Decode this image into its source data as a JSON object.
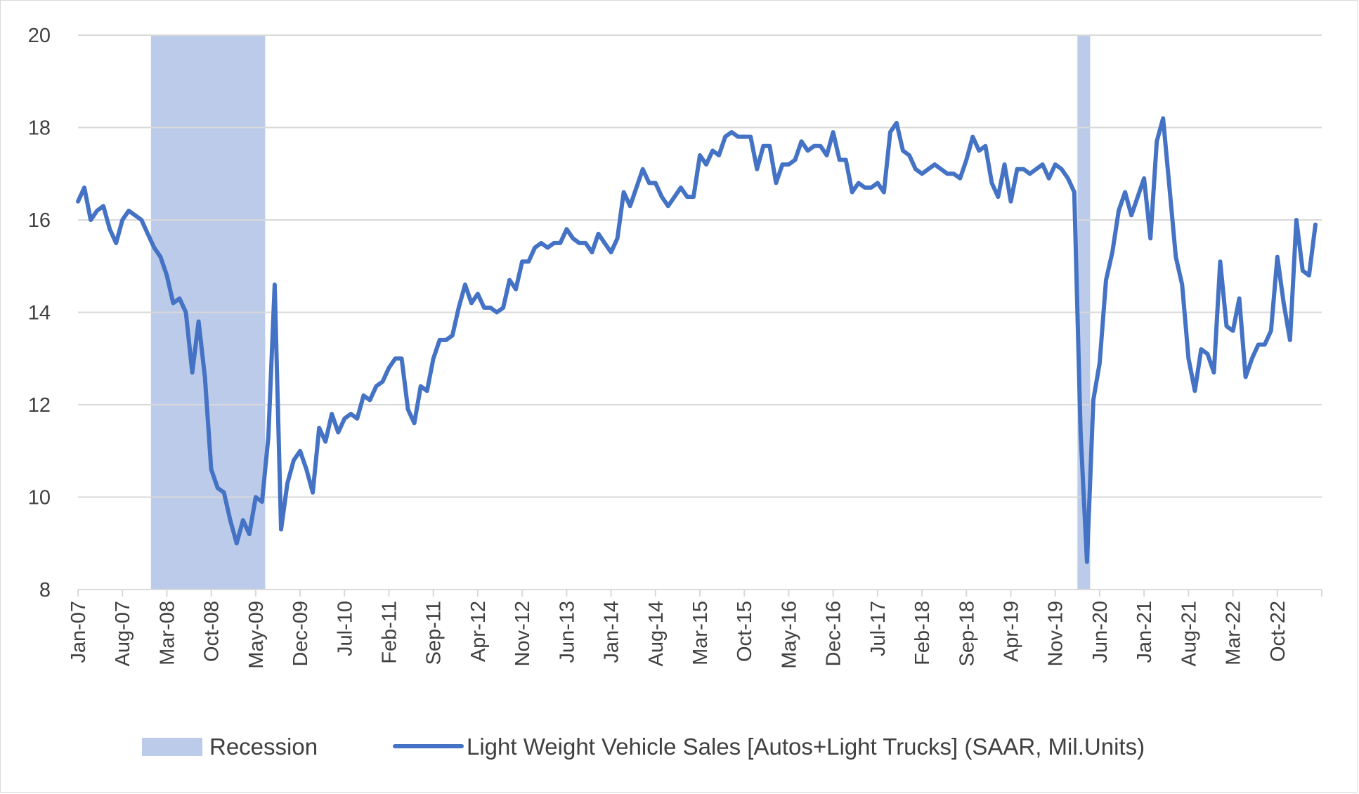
{
  "chart_data": {
    "type": "line",
    "title": "",
    "xlabel": "",
    "ylabel": "",
    "ylim": [
      8,
      20
    ],
    "yticks": [
      8,
      10,
      12,
      14,
      16,
      18,
      20
    ],
    "grid": true,
    "legend_position": "bottom",
    "x_start": "Jan-07",
    "x_tick_labels": [
      "Jan-07",
      "Aug-07",
      "Mar-08",
      "Oct-08",
      "May-09",
      "Dec-09",
      "Jul-10",
      "Feb-11",
      "Sep-11",
      "Apr-12",
      "Nov-12",
      "Jun-13",
      "Jan-14",
      "Aug-14",
      "Mar-15",
      "Oct-15",
      "May-16",
      "Dec-16",
      "Jul-17",
      "Feb-18",
      "Sep-18",
      "Apr-19",
      "Nov-19",
      "Jun-20",
      "Jan-21",
      "Aug-21",
      "Mar-22",
      "Oct-22"
    ],
    "x_tick_interval_months": 7,
    "recession": {
      "name": "Recession",
      "color": "#bccbe9",
      "periods": [
        {
          "start": "Dec-07",
          "end": "Jun-09"
        },
        {
          "start": "Feb-20",
          "end": "Apr-20"
        }
      ]
    },
    "series": [
      {
        "name": "Light Weight Vehicle Sales [Autos+Light Trucks] (SAAR, Mil.Units)",
        "color": "#4472c4",
        "values": [
          16.4,
          16.7,
          16.0,
          16.2,
          16.3,
          15.8,
          15.5,
          16.0,
          16.2,
          16.1,
          16.0,
          15.7,
          15.4,
          15.2,
          14.8,
          14.2,
          14.3,
          14.0,
          12.7,
          13.8,
          12.6,
          10.6,
          10.2,
          10.1,
          9.5,
          9.0,
          9.5,
          9.2,
          10.0,
          9.9,
          11.3,
          14.6,
          9.3,
          10.3,
          10.8,
          11.0,
          10.6,
          10.1,
          11.5,
          11.2,
          11.8,
          11.4,
          11.7,
          11.8,
          11.7,
          12.2,
          12.1,
          12.4,
          12.5,
          12.8,
          13.0,
          13.0,
          11.9,
          11.6,
          12.4,
          12.3,
          13.0,
          13.4,
          13.4,
          13.5,
          14.1,
          14.6,
          14.2,
          14.4,
          14.1,
          14.1,
          14.0,
          14.1,
          14.7,
          14.5,
          15.1,
          15.1,
          15.4,
          15.5,
          15.4,
          15.5,
          15.5,
          15.8,
          15.6,
          15.5,
          15.5,
          15.3,
          15.7,
          15.5,
          15.3,
          15.6,
          16.6,
          16.3,
          16.7,
          17.1,
          16.8,
          16.8,
          16.5,
          16.3,
          16.5,
          16.7,
          16.5,
          16.5,
          17.4,
          17.2,
          17.5,
          17.4,
          17.8,
          17.9,
          17.8,
          17.8,
          17.8,
          17.1,
          17.6,
          17.6,
          16.8,
          17.2,
          17.2,
          17.3,
          17.7,
          17.5,
          17.6,
          17.6,
          17.4,
          17.9,
          17.3,
          17.3,
          16.6,
          16.8,
          16.7,
          16.7,
          16.8,
          16.6,
          17.9,
          18.1,
          17.5,
          17.4,
          17.1,
          17.0,
          17.1,
          17.2,
          17.1,
          17.0,
          17.0,
          16.9,
          17.3,
          17.8,
          17.5,
          17.6,
          16.8,
          16.5,
          17.2,
          16.4,
          17.1,
          17.1,
          17.0,
          17.1,
          17.2,
          16.9,
          17.2,
          17.1,
          16.9,
          16.6,
          11.4,
          8.6,
          12.1,
          12.9,
          14.7,
          15.3,
          16.2,
          16.6,
          16.1,
          16.5,
          16.9,
          15.6,
          17.7,
          18.2,
          16.7,
          15.2,
          14.6,
          13.0,
          12.3,
          13.2,
          13.1,
          12.7,
          15.1,
          13.7,
          13.6,
          14.3,
          12.6,
          13.0,
          13.3,
          13.3,
          13.6,
          15.2,
          14.2,
          13.4,
          16.0,
          14.9,
          14.8,
          15.9
        ]
      }
    ]
  }
}
